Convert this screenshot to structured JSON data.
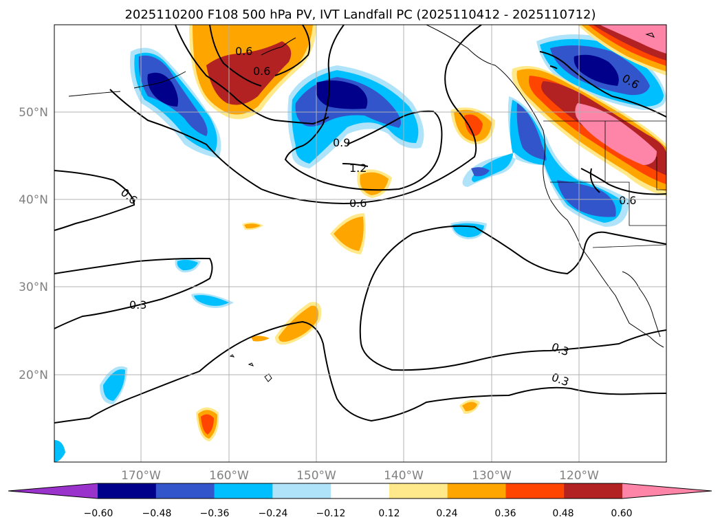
{
  "title": "2025110200 F108 500 hPa PV, IVT Landfall PC (2025110412 - 2025110712)",
  "axes": {
    "lat_labels": [
      "50°N",
      "40°N",
      "30°N",
      "20°N"
    ],
    "lon_labels": [
      "170°W",
      "160°W",
      "150°W",
      "140°W",
      "130°W",
      "120°W"
    ]
  },
  "contour_labels": [
    "0.6",
    "0.6",
    "0.9",
    "1.2",
    "0.6",
    "0.6",
    "0.6",
    "0.6",
    "0.3",
    "0.3",
    "0.3"
  ],
  "colorbar": {
    "ticks": [
      "−0.60",
      "−0.48",
      "−0.36",
      "−0.24",
      "−0.12",
      "0.12",
      "0.24",
      "0.36",
      "0.48",
      "0.60"
    ],
    "colors": [
      "#9933cc",
      "#00008b",
      "#3355cc",
      "#00bfff",
      "#aee3fa",
      "#ffffff",
      "#ffe98a",
      "#ffa500",
      "#ff4500",
      "#b22222",
      "#ff85a8"
    ]
  },
  "palette": {
    "dark_blue": "#00008b",
    "blue": "#3355cc",
    "deep_sky": "#00bfff",
    "light_blue": "#aee3fa",
    "yellow": "#ffe98a",
    "orange": "#ffa500",
    "red_orange": "#ff4500",
    "firebrick": "#b22222",
    "pink": "#ff85a8"
  }
}
